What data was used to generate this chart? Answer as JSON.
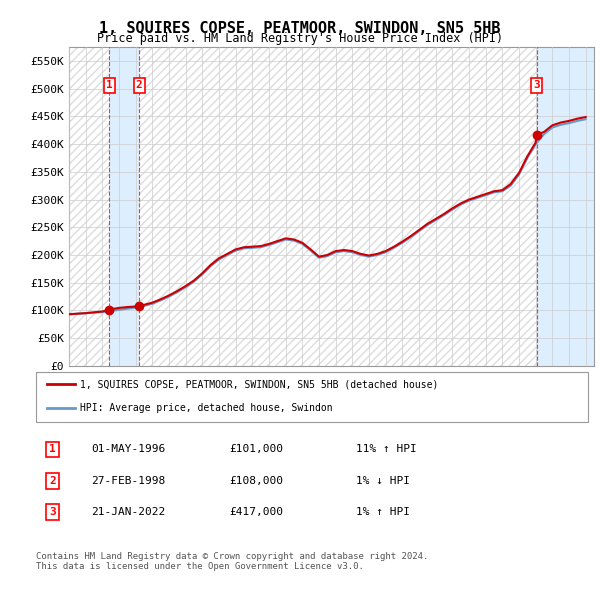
{
  "title": "1, SQUIRES COPSE, PEATMOOR, SWINDON, SN5 5HB",
  "subtitle": "Price paid vs. HM Land Registry's House Price Index (HPI)",
  "ylim": [
    0,
    575000
  ],
  "yticks": [
    0,
    50000,
    100000,
    150000,
    200000,
    250000,
    300000,
    350000,
    400000,
    450000,
    500000,
    550000
  ],
  "ytick_labels": [
    "£0",
    "£50K",
    "£100K",
    "£150K",
    "£200K",
    "£250K",
    "£300K",
    "£350K",
    "£400K",
    "£450K",
    "£500K",
    "£550K"
  ],
  "sale_dates": [
    "1996-05-01",
    "1998-02-27",
    "2022-01-21"
  ],
  "sale_prices": [
    101000,
    108000,
    417000
  ],
  "sale_labels": [
    "1",
    "2",
    "3"
  ],
  "hpi_color": "#6699cc",
  "price_color": "#cc0000",
  "legend_property": "1, SQUIRES COPSE, PEATMOOR, SWINDON, SN5 5HB (detached house)",
  "legend_hpi": "HPI: Average price, detached house, Swindon",
  "table_rows": [
    [
      "1",
      "01-MAY-1996",
      "£101,000",
      "11% ↑ HPI"
    ],
    [
      "2",
      "27-FEB-1998",
      "£108,000",
      "1% ↓ HPI"
    ],
    [
      "3",
      "21-JAN-2022",
      "£417,000",
      "1% ↑ HPI"
    ]
  ],
  "footer": "Contains HM Land Registry data © Crown copyright and database right 2024.\nThis data is licensed under the Open Government Licence v3.0.",
  "background_hatch_color": "#e8e8e8",
  "sale_region_color": "#ddeeff",
  "grid_color": "#cccccc"
}
